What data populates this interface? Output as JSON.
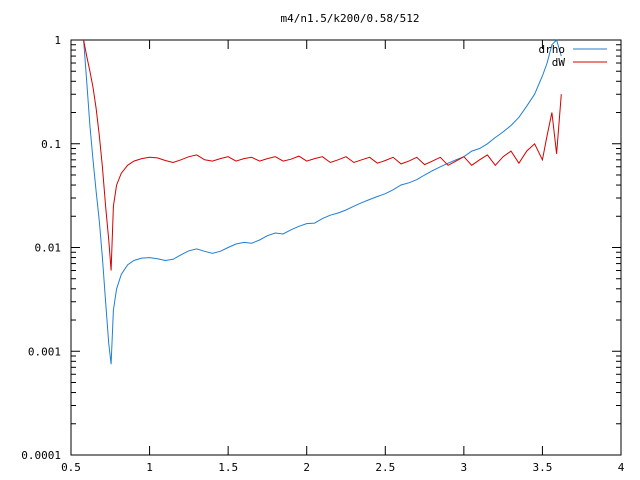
{
  "chart_data": {
    "type": "line",
    "title": "m4/n1.5/k200/0.58/512",
    "xlabel": "",
    "ylabel": "",
    "xlim": [
      0.5,
      4
    ],
    "ylim": [
      0.0001,
      1
    ],
    "yscale": "log",
    "grid": false,
    "legend_position": "top-right",
    "xticks": [
      {
        "value": 0.5,
        "label": "0.5"
      },
      {
        "value": 1,
        "label": "1"
      },
      {
        "value": 1.5,
        "label": "1.5"
      },
      {
        "value": 2,
        "label": "2"
      },
      {
        "value": 2.5,
        "label": "2.5"
      },
      {
        "value": 3,
        "label": "3"
      },
      {
        "value": 3.5,
        "label": "3.5"
      },
      {
        "value": 4,
        "label": "4"
      }
    ],
    "yticks": [
      {
        "value": 1,
        "label": "1"
      },
      {
        "value": 0.1,
        "label": "0.1"
      },
      {
        "value": 0.01,
        "label": "0.01"
      },
      {
        "value": 0.001,
        "label": "0.001"
      },
      {
        "value": 0.0001,
        "label": "0.0001"
      }
    ],
    "series": [
      {
        "name": "drho",
        "color": "#1f7fd6",
        "x": [
          0.58,
          0.6,
          0.62,
          0.64,
          0.66,
          0.68,
          0.7,
          0.72,
          0.74,
          0.755,
          0.77,
          0.79,
          0.82,
          0.86,
          0.9,
          0.95,
          1.0,
          1.05,
          1.1,
          1.15,
          1.2,
          1.25,
          1.3,
          1.35,
          1.4,
          1.45,
          1.5,
          1.55,
          1.6,
          1.65,
          1.7,
          1.75,
          1.8,
          1.85,
          1.9,
          1.95,
          2.0,
          2.05,
          2.1,
          2.15,
          2.2,
          2.25,
          2.3,
          2.35,
          2.4,
          2.45,
          2.5,
          2.55,
          2.6,
          2.65,
          2.7,
          2.75,
          2.8,
          2.85,
          2.9,
          2.95,
          3.0,
          3.05,
          3.1,
          3.15,
          3.2,
          3.25,
          3.3,
          3.35,
          3.4,
          3.45,
          3.5,
          3.53,
          3.56,
          3.59,
          3.62
        ],
        "y": [
          1.0,
          0.4,
          0.15,
          0.07,
          0.035,
          0.018,
          0.008,
          0.003,
          0.0012,
          0.00075,
          0.0025,
          0.004,
          0.0055,
          0.0068,
          0.0075,
          0.0079,
          0.008,
          0.0078,
          0.0075,
          0.0077,
          0.0085,
          0.0093,
          0.0097,
          0.0092,
          0.0088,
          0.0092,
          0.01,
          0.0108,
          0.0112,
          0.011,
          0.0118,
          0.013,
          0.0138,
          0.0135,
          0.0148,
          0.016,
          0.017,
          0.0172,
          0.019,
          0.0205,
          0.0215,
          0.023,
          0.025,
          0.027,
          0.029,
          0.031,
          0.033,
          0.036,
          0.04,
          0.042,
          0.045,
          0.05,
          0.055,
          0.06,
          0.065,
          0.07,
          0.075,
          0.085,
          0.09,
          0.1,
          0.115,
          0.13,
          0.15,
          0.18,
          0.23,
          0.3,
          0.45,
          0.6,
          0.9,
          1.0,
          0.7
        ]
      },
      {
        "name": "dW",
        "color": "#d60000",
        "x": [
          0.58,
          0.6,
          0.62,
          0.64,
          0.66,
          0.68,
          0.7,
          0.72,
          0.74,
          0.755,
          0.77,
          0.79,
          0.82,
          0.86,
          0.9,
          0.95,
          1.0,
          1.05,
          1.1,
          1.15,
          1.2,
          1.25,
          1.3,
          1.35,
          1.4,
          1.45,
          1.5,
          1.55,
          1.6,
          1.65,
          1.7,
          1.75,
          1.8,
          1.85,
          1.9,
          1.95,
          2.0,
          2.05,
          2.1,
          2.15,
          2.2,
          2.25,
          2.3,
          2.35,
          2.4,
          2.45,
          2.5,
          2.55,
          2.6,
          2.65,
          2.7,
          2.75,
          2.8,
          2.85,
          2.9,
          2.95,
          3.0,
          3.05,
          3.1,
          3.15,
          3.2,
          3.25,
          3.3,
          3.35,
          3.4,
          3.45,
          3.5,
          3.53,
          3.56,
          3.59,
          3.62
        ],
        "y": [
          1.0,
          0.7,
          0.5,
          0.35,
          0.22,
          0.12,
          0.06,
          0.025,
          0.012,
          0.006,
          0.025,
          0.04,
          0.052,
          0.062,
          0.068,
          0.072,
          0.074,
          0.073,
          0.069,
          0.066,
          0.07,
          0.075,
          0.078,
          0.07,
          0.068,
          0.072,
          0.075,
          0.068,
          0.072,
          0.074,
          0.068,
          0.072,
          0.075,
          0.068,
          0.071,
          0.076,
          0.068,
          0.072,
          0.075,
          0.066,
          0.07,
          0.075,
          0.066,
          0.07,
          0.074,
          0.065,
          0.069,
          0.074,
          0.064,
          0.068,
          0.074,
          0.063,
          0.068,
          0.074,
          0.062,
          0.068,
          0.075,
          0.062,
          0.07,
          0.078,
          0.062,
          0.075,
          0.085,
          0.065,
          0.085,
          0.1,
          0.07,
          0.12,
          0.2,
          0.08,
          0.3
        ]
      }
    ]
  }
}
